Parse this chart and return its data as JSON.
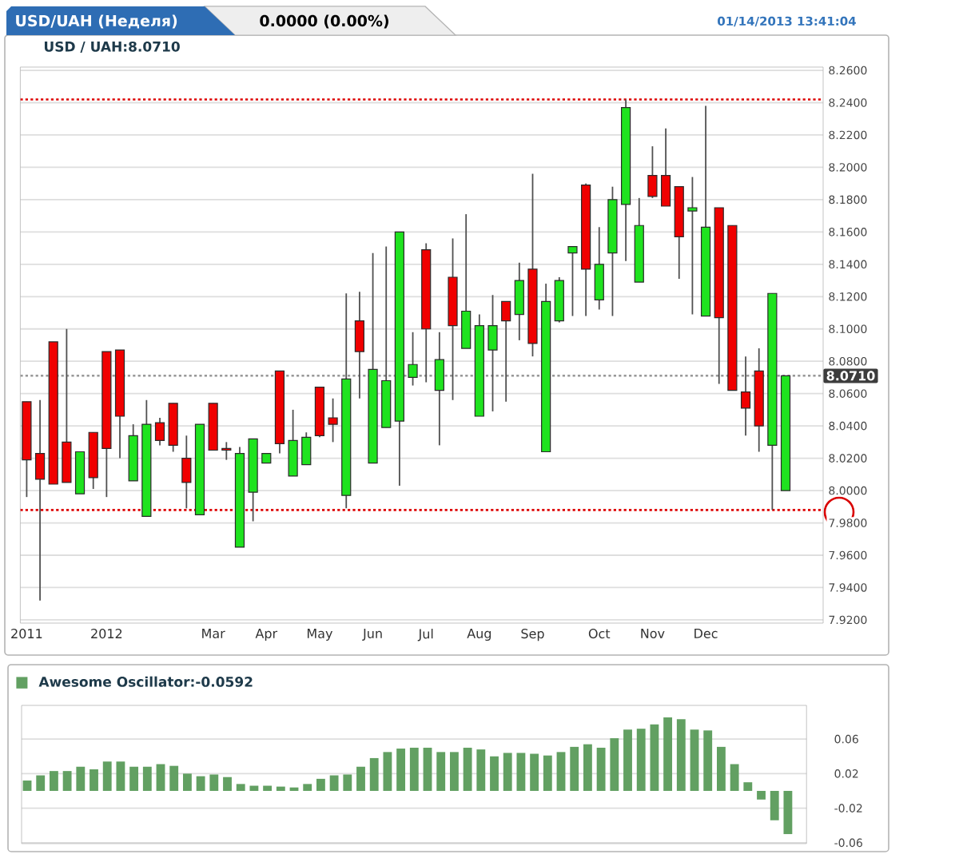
{
  "chart_data": [
    {
      "type": "candlestick",
      "title": "USD/UAH (Неделя)",
      "subtitle": "USD / UAH:8.0710",
      "annotations": [
        "0.0000 (0.00%)",
        "01/14/2013 13:41:04"
      ],
      "categories": [
        "2011",
        null,
        null,
        null,
        null,
        null,
        "2012",
        null,
        null,
        null,
        null,
        null,
        null,
        null,
        "Mar",
        null,
        null,
        null,
        "Apr",
        null,
        null,
        null,
        "May",
        null,
        null,
        null,
        "Jun",
        null,
        null,
        null,
        "Jul",
        null,
        null,
        null,
        "Aug",
        null,
        null,
        null,
        "Sep",
        null,
        null,
        null,
        null,
        "Oct",
        null,
        null,
        null,
        "Nov",
        null,
        null,
        null,
        "Dec",
        null,
        null,
        null,
        null,
        null,
        null
      ],
      "ohlc": [
        [
          8.055,
          8.055,
          7.996,
          8.019
        ],
        [
          8.023,
          8.056,
          7.932,
          8.007
        ],
        [
          8.092,
          8.092,
          8.004,
          8.004
        ],
        [
          8.03,
          8.1,
          8.005,
          8.005
        ],
        [
          7.998,
          8.024,
          7.998,
          8.024
        ],
        [
          8.036,
          8.036,
          8.001,
          8.008
        ],
        [
          8.086,
          8.086,
          7.996,
          8.026
        ],
        [
          8.087,
          8.087,
          8.02,
          8.046
        ],
        [
          8.006,
          8.041,
          8.006,
          8.034
        ],
        [
          7.984,
          8.056,
          7.984,
          8.041
        ],
        [
          8.042,
          8.045,
          8.028,
          8.031
        ],
        [
          8.054,
          8.054,
          8.024,
          8.028
        ],
        [
          8.02,
          8.034,
          7.989,
          8.005
        ],
        [
          7.985,
          8.041,
          7.985,
          8.041
        ],
        [
          8.054,
          8.054,
          8.025,
          8.025
        ],
        [
          8.026,
          8.03,
          8.019,
          8.025
        ],
        [
          7.965,
          8.027,
          7.965,
          8.023
        ],
        [
          7.999,
          8.032,
          7.981,
          8.032
        ],
        [
          8.017,
          8.023,
          8.017,
          8.023
        ],
        [
          8.074,
          8.074,
          8.023,
          8.029
        ],
        [
          8.009,
          8.05,
          8.009,
          8.031
        ],
        [
          8.016,
          8.036,
          8.016,
          8.033
        ],
        [
          8.064,
          8.064,
          8.033,
          8.034
        ],
        [
          8.045,
          8.057,
          8.03,
          8.041
        ],
        [
          7.997,
          8.122,
          7.989,
          8.069
        ],
        [
          8.105,
          8.123,
          8.057,
          8.086
        ],
        [
          8.017,
          8.147,
          8.017,
          8.075
        ],
        [
          8.039,
          8.151,
          8.039,
          8.068
        ],
        [
          8.043,
          8.16,
          8.003,
          8.16
        ],
        [
          8.07,
          8.098,
          8.065,
          8.078
        ],
        [
          8.149,
          8.153,
          8.067,
          8.1
        ],
        [
          8.062,
          8.098,
          8.028,
          8.081
        ],
        [
          8.132,
          8.156,
          8.056,
          8.102
        ],
        [
          8.088,
          8.171,
          8.088,
          8.111
        ],
        [
          8.046,
          8.109,
          8.046,
          8.102
        ],
        [
          8.087,
          8.121,
          8.049,
          8.102
        ],
        [
          8.117,
          8.117,
          8.055,
          8.105
        ],
        [
          8.109,
          8.141,
          8.093,
          8.13
        ],
        [
          8.137,
          8.196,
          8.083,
          8.091
        ],
        [
          8.024,
          8.128,
          8.024,
          8.117
        ],
        [
          8.105,
          8.132,
          8.104,
          8.13
        ],
        [
          8.147,
          8.151,
          8.108,
          8.151
        ],
        [
          8.189,
          8.19,
          8.108,
          8.137
        ],
        [
          8.118,
          8.163,
          8.112,
          8.14
        ],
        [
          8.147,
          8.188,
          8.108,
          8.18
        ],
        [
          8.177,
          8.242,
          8.142,
          8.237
        ],
        [
          8.129,
          8.181,
          8.129,
          8.164
        ],
        [
          8.195,
          8.213,
          8.181,
          8.182
        ],
        [
          8.195,
          8.224,
          8.176,
          8.176
        ],
        [
          8.188,
          8.188,
          8.131,
          8.157
        ],
        [
          8.173,
          8.194,
          8.109,
          8.175
        ],
        [
          8.108,
          8.238,
          8.108,
          8.163
        ],
        [
          8.175,
          8.175,
          8.066,
          8.107
        ],
        [
          8.164,
          8.164,
          8.062,
          8.062
        ],
        [
          8.061,
          8.083,
          8.034,
          8.051
        ],
        [
          8.074,
          8.088,
          8.024,
          8.04
        ],
        [
          8.028,
          8.122,
          7.988,
          8.122
        ],
        [
          8.0,
          8.071,
          8.0,
          8.071
        ]
      ],
      "colors": [
        "#f00000",
        "#f00000",
        "#f00000",
        "#f00000",
        "#1fe31f",
        "#f00000",
        "#f00000",
        "#f00000",
        "#1fe31f",
        "#1fe31f",
        "#f00000",
        "#f00000",
        "#f00000",
        "#1fe31f",
        "#f00000",
        "#f00000",
        "#1fe31f",
        "#1fe31f",
        "#1fe31f",
        "#f00000",
        "#1fe31f",
        "#1fe31f",
        "#f00000",
        "#f00000",
        "#1fe31f",
        "#f00000",
        "#1fe31f",
        "#1fe31f",
        "#1fe31f",
        "#1fe31f",
        "#f00000",
        "#1fe31f",
        "#f00000",
        "#1fe31f",
        "#1fe31f",
        "#1fe31f",
        "#f00000",
        "#1fe31f",
        "#f00000",
        "#1fe31f",
        "#1fe31f",
        "#1fe31f",
        "#f00000",
        "#1fe31f",
        "#1fe31f",
        "#1fe31f",
        "#1fe31f",
        "#f00000",
        "#f00000",
        "#f00000",
        "#1fe31f",
        "#1fe31f",
        "#f00000",
        "#f00000",
        "#f00000",
        "#f00000",
        "#1fe31f",
        "#1fe31f"
      ],
      "ylim": [
        7.918,
        8.262
      ],
      "yticks": [
        {
          "value": 7.92,
          "label": "7.9200"
        },
        {
          "value": 7.94,
          "label": "7.9400"
        },
        {
          "value": 7.96,
          "label": "7.9600"
        },
        {
          "value": 7.98,
          "label": "7.9800"
        },
        {
          "value": 8.0,
          "label": "8.0000"
        },
        {
          "value": 8.02,
          "label": "8.0200"
        },
        {
          "value": 8.04,
          "label": "8.0400"
        },
        {
          "value": 8.06,
          "label": "8.0600"
        },
        {
          "value": 8.08,
          "label": "8.0800"
        },
        {
          "value": 8.1,
          "label": "8.1000"
        },
        {
          "value": 8.12,
          "label": "8.1200"
        },
        {
          "value": 8.14,
          "label": "8.1400"
        },
        {
          "value": 8.16,
          "label": "8.1600"
        },
        {
          "value": 8.18,
          "label": "8.1800"
        },
        {
          "value": 8.2,
          "label": "8.2000"
        },
        {
          "value": 8.22,
          "label": "8.2200"
        },
        {
          "value": 8.24,
          "label": "8.2400"
        },
        {
          "value": 8.26,
          "label": "8.2600"
        }
      ],
      "grid": "y",
      "ref_lines": [
        {
          "axis": "y",
          "value": 8.071,
          "label": "8.0710",
          "color": "#999999",
          "line_style": "dotted"
        },
        {
          "axis": "y",
          "value": 8.242,
          "color": "#dd0000",
          "line_style": "dotted"
        },
        {
          "axis": "y",
          "value": 7.988,
          "color": "#dd0000",
          "line_style": "dotted"
        }
      ]
    },
    {
      "type": "bar",
      "categories": [
        null,
        null,
        null,
        null,
        null,
        null,
        null,
        null,
        null,
        null,
        null,
        null,
        null,
        null,
        null,
        null,
        null,
        null,
        null,
        null,
        null,
        null,
        null,
        null,
        null,
        null,
        null,
        null,
        null,
        null,
        null,
        null,
        null,
        null,
        null,
        null,
        null,
        null,
        null,
        null,
        null,
        null,
        null,
        null,
        null,
        null,
        null,
        null,
        null,
        null,
        null,
        null,
        null,
        null,
        null,
        null,
        null,
        null
      ],
      "series": [
        {
          "name": "Awesome Oscillator:-0.0592",
          "color": "#62a062",
          "values": [
            0.012,
            0.018,
            0.023,
            0.023,
            0.028,
            0.025,
            0.034,
            0.034,
            0.028,
            0.028,
            0.031,
            0.029,
            0.02,
            0.017,
            0.019,
            0.016,
            0.008,
            0.006,
            0.006,
            0.005,
            0.004,
            0.008,
            0.014,
            0.018,
            0.019,
            0.028,
            0.038,
            0.045,
            0.049,
            0.05,
            0.05,
            0.045,
            0.045,
            0.05,
            0.048,
            0.04,
            0.044,
            0.044,
            0.043,
            0.041,
            0.045,
            0.051,
            0.054,
            0.05,
            0.061,
            0.071,
            0.072,
            0.077,
            0.085,
            0.083,
            0.071,
            0.07,
            0.051,
            0.031,
            0.01,
            -0.01,
            -0.034,
            -0.05
          ]
        }
      ],
      "ylim": [
        -0.061,
        0.099
      ],
      "yticks": [
        -0.06,
        -0.02,
        0.02,
        0.06
      ],
      "grid": "y",
      "tick_labels": "y",
      "legend": "top left"
    }
  ]
}
